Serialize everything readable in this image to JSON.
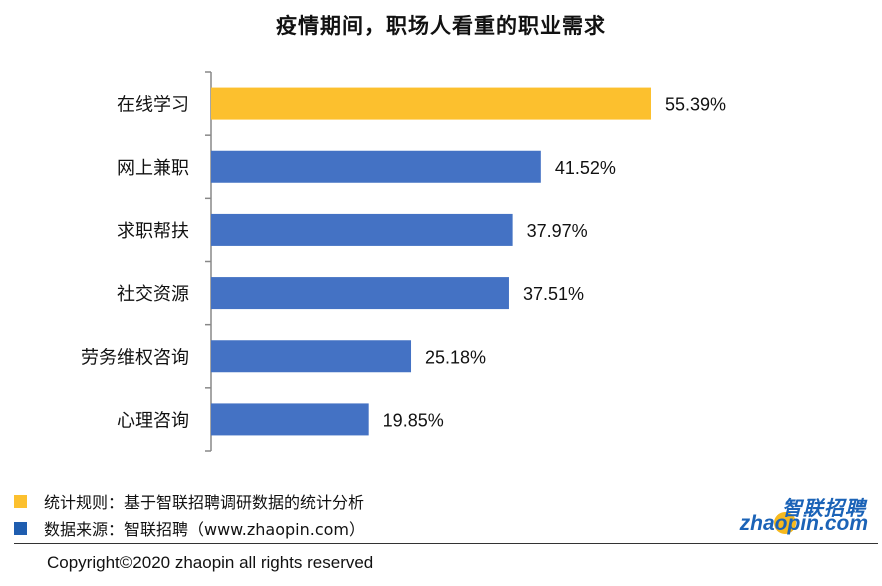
{
  "chart_data": {
    "type": "bar",
    "orientation": "horizontal",
    "title": "疫情期间，职场人看重的职业需求",
    "categories": [
      "在线学习",
      "网上兼职",
      "求职帮扶",
      "社交资源",
      "劳务维权咨询",
      "心理咨询"
    ],
    "values": [
      55.39,
      41.52,
      37.97,
      37.51,
      25.18,
      19.85
    ],
    "value_labels": [
      "55.39%",
      "41.52%",
      "37.97%",
      "37.51%",
      "25.18%",
      "19.85%"
    ],
    "bar_colors": [
      "#FCC02E",
      "#4472C4",
      "#4472C4",
      "#4472C4",
      "#4472C4",
      "#4472C4"
    ],
    "xlim": [
      0,
      60
    ],
    "grid": false
  },
  "legend": [
    {
      "text": "统计规则：基于智联招聘调研数据的统计分析",
      "color": "#FCC02E"
    },
    {
      "text": "数据来源：智联招聘（www.zhaopin.com）",
      "color": "#1F5DAF"
    }
  ],
  "footer": {
    "copyright": "Copyright©2020 zhaopin all rights reserved"
  },
  "logo": {
    "cn": "智联招聘",
    "en": "zhaopin.com"
  }
}
